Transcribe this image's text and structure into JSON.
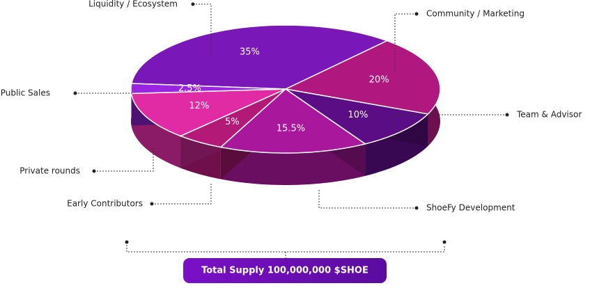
{
  "chart_data": {
    "type": "pie",
    "categories": [
      "Liquidity / Ecosystem",
      "Community / Marketing",
      "Team & Advisor",
      "ShoeFy Development",
      "Early Contributors",
      "Private rounds",
      "Public Sales"
    ],
    "values": [
      35,
      20,
      10,
      15.5,
      5,
      12,
      2.5
    ],
    "value_labels": [
      "35%",
      "20%",
      "10%",
      "15.5%",
      "5%",
      "12%",
      "2.5%"
    ],
    "colors": [
      "#7a17b9",
      "#b1187f",
      "#5b0d85",
      "#a9179d",
      "#b31a78",
      "#e02ba5",
      "#9b24e2"
    ],
    "total_supply_label": "Total Supply 100,000,000 $SHOE"
  }
}
